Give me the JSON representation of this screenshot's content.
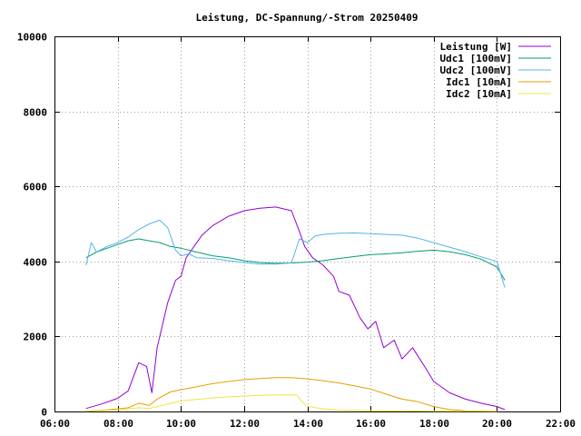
{
  "chart_data": {
    "type": "line",
    "title": "Leistung, DC-Spannung/-Strom 20250409",
    "xlabel": "",
    "ylabel": "",
    "xlim": [
      "06:00",
      "22:00"
    ],
    "ylim": [
      0,
      10000
    ],
    "x_ticks": [
      "06:00",
      "08:00",
      "10:00",
      "12:00",
      "14:00",
      "16:00",
      "18:00",
      "20:00",
      "22:00"
    ],
    "y_ticks": [
      "0",
      "2000",
      "4000",
      "6000",
      "8000",
      "10000"
    ],
    "grid": true,
    "legend_position": "top-right",
    "series": [
      {
        "name": "Leistung [W]",
        "color": "#9400d3",
        "points": [
          [
            "07:00",
            80
          ],
          [
            "07:30",
            200
          ],
          [
            "08:00",
            350
          ],
          [
            "08:20",
            550
          ],
          [
            "08:40",
            1300
          ],
          [
            "08:55",
            1200
          ],
          [
            "09:05",
            500
          ],
          [
            "09:15",
            1700
          ],
          [
            "09:35",
            2900
          ],
          [
            "09:50",
            3500
          ],
          [
            "10:00",
            3600
          ],
          [
            "10:10",
            4100
          ],
          [
            "10:20",
            4300
          ],
          [
            "10:40",
            4700
          ],
          [
            "11:00",
            4950
          ],
          [
            "11:30",
            5200
          ],
          [
            "12:00",
            5350
          ],
          [
            "12:30",
            5420
          ],
          [
            "13:00",
            5450
          ],
          [
            "13:30",
            5350
          ],
          [
            "13:45",
            4800
          ],
          [
            "13:55",
            4400
          ],
          [
            "14:10",
            4100
          ],
          [
            "14:30",
            3900
          ],
          [
            "14:50",
            3600
          ],
          [
            "15:00",
            3200
          ],
          [
            "15:20",
            3100
          ],
          [
            "15:40",
            2500
          ],
          [
            "15:55",
            2200
          ],
          [
            "16:10",
            2400
          ],
          [
            "16:25",
            1700
          ],
          [
            "16:45",
            1900
          ],
          [
            "17:00",
            1400
          ],
          [
            "17:20",
            1700
          ],
          [
            "17:45",
            1150
          ],
          [
            "18:00",
            800
          ],
          [
            "18:30",
            500
          ],
          [
            "19:00",
            330
          ],
          [
            "19:30",
            220
          ],
          [
            "20:00",
            130
          ],
          [
            "20:15",
            50
          ]
        ]
      },
      {
        "name": "Udc1 [100mV]",
        "color": "#009e73",
        "points": [
          [
            "07:00",
            4100
          ],
          [
            "07:20",
            4250
          ],
          [
            "07:40",
            4350
          ],
          [
            "08:00",
            4450
          ],
          [
            "08:20",
            4550
          ],
          [
            "08:40",
            4600
          ],
          [
            "09:00",
            4550
          ],
          [
            "09:20",
            4500
          ],
          [
            "09:40",
            4400
          ],
          [
            "10:00",
            4350
          ],
          [
            "10:30",
            4250
          ],
          [
            "11:00",
            4150
          ],
          [
            "11:30",
            4100
          ],
          [
            "12:00",
            4020
          ],
          [
            "12:30",
            3970
          ],
          [
            "13:00",
            3950
          ],
          [
            "13:30",
            3960
          ],
          [
            "14:00",
            3980
          ],
          [
            "14:30",
            4020
          ],
          [
            "15:00",
            4080
          ],
          [
            "15:30",
            4130
          ],
          [
            "16:00",
            4180
          ],
          [
            "16:30",
            4200
          ],
          [
            "17:00",
            4230
          ],
          [
            "17:30",
            4270
          ],
          [
            "18:00",
            4300
          ],
          [
            "18:30",
            4260
          ],
          [
            "19:00",
            4180
          ],
          [
            "19:30",
            4060
          ],
          [
            "20:00",
            3850
          ],
          [
            "20:15",
            3500
          ]
        ]
      },
      {
        "name": "Udc2 [100mV]",
        "color": "#56b4e9",
        "points": [
          [
            "07:00",
            3900
          ],
          [
            "07:10",
            4500
          ],
          [
            "07:20",
            4250
          ],
          [
            "07:40",
            4400
          ],
          [
            "08:00",
            4500
          ],
          [
            "08:20",
            4650
          ],
          [
            "08:40",
            4850
          ],
          [
            "09:00",
            5000
          ],
          [
            "09:20",
            5100
          ],
          [
            "09:35",
            4900
          ],
          [
            "09:50",
            4300
          ],
          [
            "10:00",
            4150
          ],
          [
            "10:15",
            4200
          ],
          [
            "10:30",
            4100
          ],
          [
            "11:00",
            4080
          ],
          [
            "11:30",
            4020
          ],
          [
            "12:00",
            3970
          ],
          [
            "12:30",
            3930
          ],
          [
            "13:00",
            3930
          ],
          [
            "13:30",
            3960
          ],
          [
            "13:45",
            4600
          ],
          [
            "14:00",
            4500
          ],
          [
            "14:15",
            4680
          ],
          [
            "14:30",
            4720
          ],
          [
            "15:00",
            4750
          ],
          [
            "15:30",
            4760
          ],
          [
            "16:00",
            4740
          ],
          [
            "16:30",
            4720
          ],
          [
            "17:00",
            4700
          ],
          [
            "17:30",
            4620
          ],
          [
            "18:00",
            4500
          ],
          [
            "18:30",
            4380
          ],
          [
            "19:00",
            4260
          ],
          [
            "19:30",
            4120
          ],
          [
            "20:00",
            4000
          ],
          [
            "20:15",
            3300
          ]
        ]
      },
      {
        "name": "Idc1 [10mA]",
        "color": "#e69f00",
        "points": [
          [
            "07:00",
            10
          ],
          [
            "07:40",
            40
          ],
          [
            "08:20",
            100
          ],
          [
            "08:40",
            220
          ],
          [
            "09:00",
            160
          ],
          [
            "09:15",
            330
          ],
          [
            "09:40",
            520
          ],
          [
            "10:00",
            580
          ],
          [
            "10:30",
            660
          ],
          [
            "11:00",
            740
          ],
          [
            "11:30",
            800
          ],
          [
            "12:00",
            850
          ],
          [
            "12:30",
            880
          ],
          [
            "13:00",
            900
          ],
          [
            "13:30",
            900
          ],
          [
            "14:00",
            870
          ],
          [
            "14:30",
            820
          ],
          [
            "15:00",
            760
          ],
          [
            "15:30",
            680
          ],
          [
            "16:00",
            600
          ],
          [
            "16:30",
            460
          ],
          [
            "17:00",
            330
          ],
          [
            "17:30",
            260
          ],
          [
            "18:00",
            130
          ],
          [
            "18:30",
            50
          ],
          [
            "19:00",
            20
          ],
          [
            "20:00",
            5
          ]
        ]
      },
      {
        "name": "Idc2 [10mA]",
        "color": "#f0e442",
        "points": [
          [
            "07:00",
            10
          ],
          [
            "08:00",
            40
          ],
          [
            "08:40",
            100
          ],
          [
            "09:00",
            80
          ],
          [
            "09:30",
            180
          ],
          [
            "10:00",
            280
          ],
          [
            "10:30",
            320
          ],
          [
            "11:00",
            360
          ],
          [
            "11:30",
            390
          ],
          [
            "12:00",
            410
          ],
          [
            "12:30",
            430
          ],
          [
            "13:00",
            440
          ],
          [
            "13:40",
            440
          ],
          [
            "13:50",
            260
          ],
          [
            "14:00",
            140
          ],
          [
            "14:30",
            70
          ],
          [
            "15:00",
            40
          ],
          [
            "16:00",
            20
          ],
          [
            "18:00",
            10
          ],
          [
            "20:00",
            5
          ]
        ]
      }
    ]
  }
}
